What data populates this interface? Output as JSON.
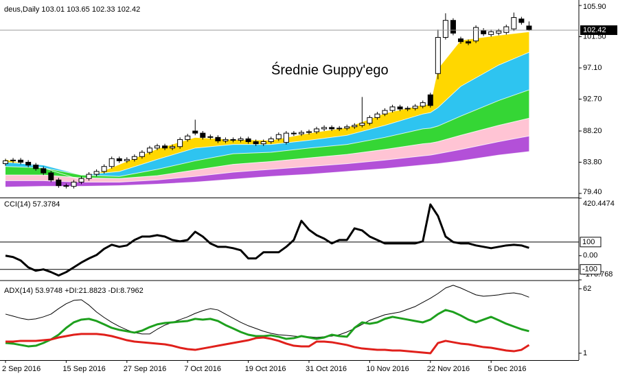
{
  "chart_data": [
    {
      "type": "candlestick",
      "title": "deus,Daily",
      "categories": [
        "2 Sep 2016",
        null,
        null,
        null,
        null,
        null,
        null,
        null,
        "15 Sep 2016",
        null,
        null,
        null,
        null,
        null,
        null,
        null,
        "27 Sep 2016",
        null,
        null,
        null,
        null,
        null,
        null,
        null,
        "7 Oct 2016",
        null,
        null,
        null,
        null,
        null,
        null,
        null,
        "19 Oct 2016",
        null,
        null,
        null,
        null,
        null,
        null,
        null,
        "31 Oct 2016",
        null,
        null,
        null,
        null,
        null,
        null,
        null,
        "10 Nov 2016",
        null,
        null,
        null,
        null,
        null,
        null,
        null,
        "22 Nov 2016",
        null,
        null,
        null,
        null,
        null,
        null,
        null,
        "5 Dec 2016",
        null,
        null,
        null,
        null,
        null
      ],
      "open": [
        83.6,
        84.0,
        84.1,
        83.8,
        83.4,
        82.9,
        82.3,
        81.3,
        80.5,
        80.4,
        81.0,
        81.5,
        82.1,
        82.5,
        83.2,
        84.3,
        84.0,
        84.2,
        84.6,
        85.2,
        85.8,
        86.1,
        85.8,
        86.0,
        87.0,
        88.2,
        87.9,
        87.3,
        87.3,
        86.8,
        87.0,
        86.9,
        87.1,
        86.7,
        86.4,
        86.7,
        87.1,
        86.6,
        87.9,
        87.8,
        88.0,
        88.1,
        88.5,
        88.7,
        88.5,
        88.6,
        88.8,
        89.0,
        89.3,
        90.1,
        90.6,
        91.1,
        91.6,
        91.3,
        91.4,
        91.7,
        93.3,
        96.3,
        101.4,
        103.8,
        101.2,
        100.8,
        100.9,
        102.4,
        101.8,
        102.0,
        102.1,
        102.6,
        104.0,
        103.01
      ],
      "high": [
        84.3,
        84.4,
        84.4,
        84.1,
        83.7,
        83.2,
        82.6,
        81.6,
        80.8,
        81.3,
        81.8,
        82.4,
        82.8,
        83.5,
        84.6,
        84.6,
        84.5,
        84.9,
        85.5,
        86.1,
        86.4,
        86.4,
        86.3,
        87.3,
        87.8,
        89.8,
        88.2,
        87.7,
        87.6,
        87.3,
        87.3,
        87.4,
        87.4,
        87.0,
        87.0,
        87.4,
        88.0,
        88.2,
        88.2,
        88.3,
        88.4,
        88.8,
        89.0,
        89.0,
        88.9,
        89.1,
        89.3,
        93.0,
        90.4,
        90.9,
        91.4,
        91.9,
        91.9,
        91.7,
        92.0,
        92.5,
        93.6,
        102.5,
        104.8,
        104.1,
        101.5,
        101.1,
        103.1,
        102.7,
        102.5,
        102.6,
        103.2,
        104.9,
        104.3,
        103.65
      ],
      "low": [
        83.3,
        83.7,
        83.5,
        83.1,
        82.6,
        82.0,
        81.0,
        80.2,
        80.1,
        80.1,
        80.7,
        81.2,
        81.8,
        82.2,
        82.9,
        83.7,
        83.7,
        83.9,
        84.3,
        84.9,
        85.5,
        85.5,
        85.5,
        85.7,
        86.7,
        87.6,
        87.0,
        87.0,
        86.5,
        86.5,
        86.6,
        86.6,
        86.4,
        86.1,
        86.1,
        86.4,
        86.8,
        86.3,
        87.5,
        87.5,
        87.7,
        87.8,
        88.2,
        88.2,
        88.2,
        88.3,
        88.5,
        88.7,
        89.0,
        89.8,
        90.3,
        90.8,
        91.0,
        91.0,
        91.1,
        91.4,
        91.5,
        95.5,
        101.1,
        101.7,
        100.5,
        100.3,
        100.6,
        101.6,
        101.5,
        101.7,
        101.8,
        102.3,
        103.2,
        102.33
      ],
      "close": [
        84.0,
        84.1,
        83.8,
        83.4,
        82.9,
        82.3,
        81.3,
        80.5,
        80.4,
        81.0,
        81.5,
        82.1,
        82.5,
        83.2,
        84.3,
        84.0,
        84.2,
        84.6,
        85.2,
        85.8,
        86.1,
        85.8,
        86.0,
        87.0,
        87.5,
        87.9,
        87.3,
        87.4,
        86.8,
        87.0,
        86.9,
        87.1,
        86.7,
        86.4,
        86.7,
        87.1,
        87.7,
        87.9,
        87.8,
        88.0,
        88.1,
        88.5,
        88.7,
        88.5,
        88.6,
        88.8,
        89.0,
        89.3,
        90.1,
        90.6,
        91.1,
        91.6,
        91.3,
        91.4,
        91.7,
        92.2,
        91.8,
        101.4,
        103.8,
        102.0,
        100.8,
        100.6,
        102.8,
        101.9,
        102.2,
        102.3,
        102.9,
        104.2,
        103.5,
        102.42
      ],
      "ylim": [
        78.82,
        106.48
      ],
      "yticks": [
        {
          "value": 105.9,
          "label": "105.90"
        },
        {
          "value": 101.5,
          "label": "101.50"
        },
        {
          "value": 97.1,
          "label": "97.10"
        },
        {
          "value": 92.7,
          "label": "92.70"
        },
        {
          "value": 88.2,
          "label": "88.20"
        },
        {
          "value": 83.8,
          "label": "83.80"
        },
        {
          "value": 79.4,
          "label": "79.40"
        }
      ],
      "annotation": "Średnie Guppy'ego",
      "guppy": {
        "x": [
          0,
          5,
          10,
          15,
          20,
          25,
          30,
          35,
          40,
          45,
          50,
          55,
          56,
          57,
          60,
          65,
          69
        ],
        "colors": [
          "#ffd700",
          "#2ec4f0",
          "#35d635",
          "#ffc4d4",
          "#b350d8"
        ],
        "lines": [
          {
            "values": [
              84.2,
              83.0,
              81.3,
              83.5,
              85.7,
              87.3,
              87.0,
              86.9,
              87.9,
              88.7,
              90.7,
              91.9,
              92.0,
              97.0,
              101.0,
              101.7,
              102.2
            ]
          },
          {
            "values": [
              83.8,
              83.4,
              82.0,
              82.5,
              84.2,
              85.8,
              86.3,
              86.3,
              86.9,
              87.6,
              89.0,
              90.6,
              90.8,
              91.5,
              94.5,
              97.5,
              99.3
            ]
          },
          {
            "values": [
              83.2,
              83.0,
              82.0,
              81.8,
              82.8,
              84.0,
              85.0,
              85.2,
              85.8,
              86.3,
              87.3,
              88.5,
              88.6,
              88.9,
              90.3,
              92.5,
              94.0
            ]
          },
          {
            "values": [
              82.0,
              82.0,
              81.6,
              81.5,
              81.9,
              82.7,
              83.5,
              83.9,
              84.4,
              84.9,
              85.6,
              86.4,
              86.5,
              86.7,
              87.6,
              89.0,
              90.0
            ]
          },
          {
            "values": [
              81.2,
              81.2,
              81.0,
              81.0,
              81.3,
              81.8,
              82.4,
              82.8,
              83.2,
              83.6,
              84.1,
              84.7,
              84.8,
              85.0,
              85.6,
              86.7,
              87.5
            ]
          },
          {
            "values": [
              80.3,
              80.4,
              80.4,
              80.5,
              80.7,
              81.0,
              81.4,
              81.8,
              82.1,
              82.5,
              82.9,
              83.4,
              83.5,
              83.6,
              84.0,
              84.8,
              85.3
            ]
          }
        ]
      }
    },
    {
      "type": "line",
      "title": "CCI(14)",
      "color": "#000000",
      "values": [
        0,
        -10,
        -35,
        -85,
        -110,
        -100,
        -120,
        -145,
        -120,
        -85,
        -50,
        -20,
        5,
        50,
        80,
        65,
        75,
        115,
        140,
        140,
        150,
        140,
        115,
        105,
        115,
        175,
        140,
        90,
        65,
        65,
        55,
        40,
        -20,
        -20,
        25,
        25,
        25,
        65,
        115,
        255,
        190,
        150,
        125,
        90,
        115,
        115,
        200,
        185,
        140,
        115,
        90,
        90,
        90,
        90,
        90,
        105,
        375,
        290,
        140,
        100,
        90,
        90,
        75,
        65,
        55,
        65,
        75,
        80,
        75,
        57.3784
      ],
      "ylim": [
        -176.768,
        420.4474
      ],
      "yticks": [
        420.4474,
        {
          "value": 0,
          "label": "0.00"
        },
        -176.768
      ],
      "levels": [
        100,
        -100
      ]
    },
    {
      "type": "line",
      "title": "ADX(14)",
      "series": [
        {
          "name": "ADX(14)",
          "color": "#000000",
          "values": [
            38.0,
            36.1,
            34.1,
            32.8,
            33.5,
            35.4,
            38.0,
            43.2,
            47.8,
            51.0,
            51.6,
            46.5,
            40.0,
            34.8,
            30.2,
            26.3,
            23.1,
            20.5,
            19.2,
            19.2,
            23.7,
            27.6,
            30.2,
            32.8,
            35.4,
            38.7,
            41.3,
            43.2,
            41.9,
            38.0,
            34.1,
            30.2,
            27.0,
            24.4,
            21.8,
            19.8,
            18.5,
            17.9,
            17.2,
            16.6,
            16.6,
            15.9,
            16.6,
            17.2,
            18.5,
            21.1,
            24.4,
            28.3,
            32.2,
            34.8,
            37.4,
            38.7,
            40.0,
            42.6,
            45.2,
            49.1,
            53.0,
            57.5,
            62.7,
            65.3,
            62.7,
            59.4,
            56.2,
            54.9,
            55.5,
            56.2,
            57.5,
            58.1,
            56.8,
            53.9748
          ]
        },
        {
          "name": "+DI:",
          "color": "#1ea01e",
          "values": [
            10.7,
            10.1,
            8.8,
            7.5,
            8.1,
            10.7,
            14.0,
            18.5,
            25.0,
            30.2,
            32.8,
            33.5,
            31.5,
            28.3,
            25.0,
            23.1,
            21.8,
            20.5,
            22.4,
            25.7,
            28.3,
            29.6,
            30.2,
            30.9,
            31.5,
            33.5,
            32.8,
            33.5,
            31.5,
            27.6,
            24.4,
            21.1,
            18.5,
            17.2,
            17.2,
            17.9,
            16.6,
            14.6,
            15.3,
            17.2,
            15.9,
            14.6,
            15.9,
            18.5,
            17.2,
            16.6,
            25.0,
            30.2,
            28.9,
            30.2,
            33.5,
            35.4,
            34.1,
            32.8,
            31.5,
            30.2,
            32.8,
            38.0,
            41.9,
            40.0,
            36.7,
            32.8,
            30.2,
            32.8,
            35.4,
            32.2,
            28.9,
            26.3,
            23.7,
            21.8823
          ]
        },
        {
          "name": "-DI:",
          "color": "#e0201b",
          "values": [
            12.0,
            12.0,
            12.7,
            12.7,
            12.7,
            13.3,
            14.0,
            15.9,
            17.2,
            18.5,
            19.2,
            19.2,
            19.2,
            18.5,
            17.2,
            15.3,
            13.3,
            12.0,
            11.4,
            10.7,
            10.1,
            9.4,
            8.1,
            6.2,
            4.9,
            4.2,
            5.5,
            6.8,
            8.1,
            9.4,
            10.7,
            12.0,
            13.3,
            15.3,
            15.9,
            14.6,
            12.7,
            10.1,
            8.1,
            7.5,
            7.5,
            12.0,
            12.0,
            11.4,
            10.1,
            8.8,
            6.8,
            5.5,
            4.9,
            4.2,
            4.2,
            3.6,
            3.6,
            2.9,
            2.3,
            1.6,
            1.0,
            10.7,
            12.7,
            11.4,
            10.1,
            9.4,
            8.1,
            6.8,
            6.2,
            4.9,
            3.6,
            2.9,
            4.2,
            8.7962
          ]
        }
      ],
      "ylim": [
        -5.5,
        69.1
      ],
      "yticks": [
        62,
        1
      ]
    }
  ]
}
